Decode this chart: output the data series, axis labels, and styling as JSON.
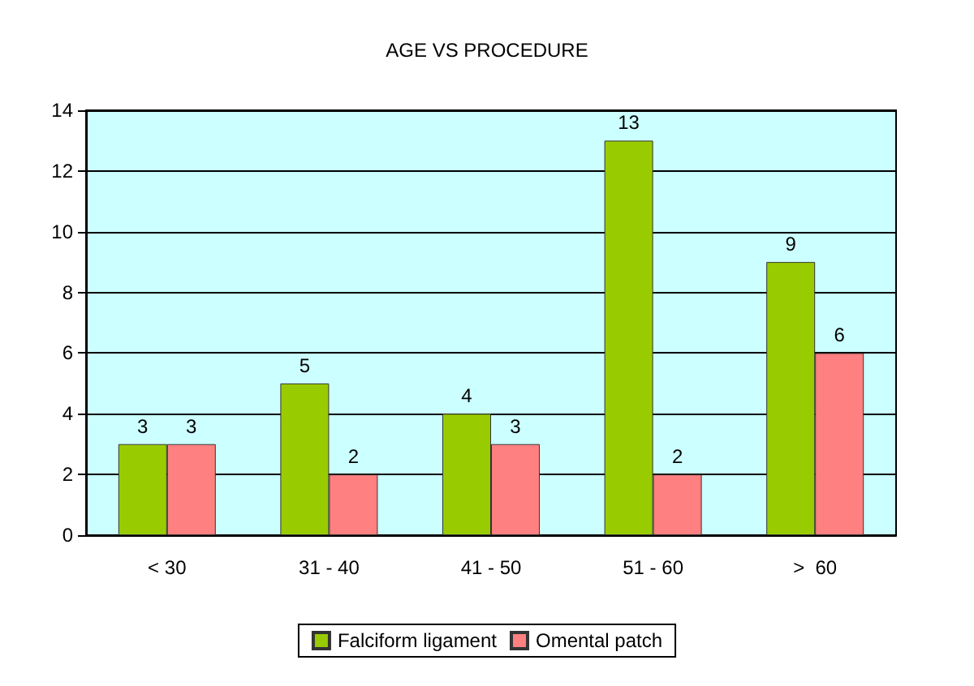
{
  "chart_data": {
    "type": "bar",
    "title": "AGE VS PROCEDURE",
    "categories": [
      "< 30",
      "31 - 40",
      "41 - 50",
      "51 - 60",
      ">  60"
    ],
    "series": [
      {
        "name": "Falciform ligament",
        "color": "#99cc00",
        "values": [
          3,
          5,
          4,
          13,
          9
        ]
      },
      {
        "name": "Omental patch",
        "color": "#ff8080",
        "values": [
          3,
          2,
          3,
          2,
          6
        ]
      }
    ],
    "ylim": [
      0,
      14
    ],
    "yticks": [
      0,
      2,
      4,
      6,
      8,
      10,
      12,
      14
    ],
    "grid": "y",
    "legend": "bottom",
    "data_labels": true
  }
}
